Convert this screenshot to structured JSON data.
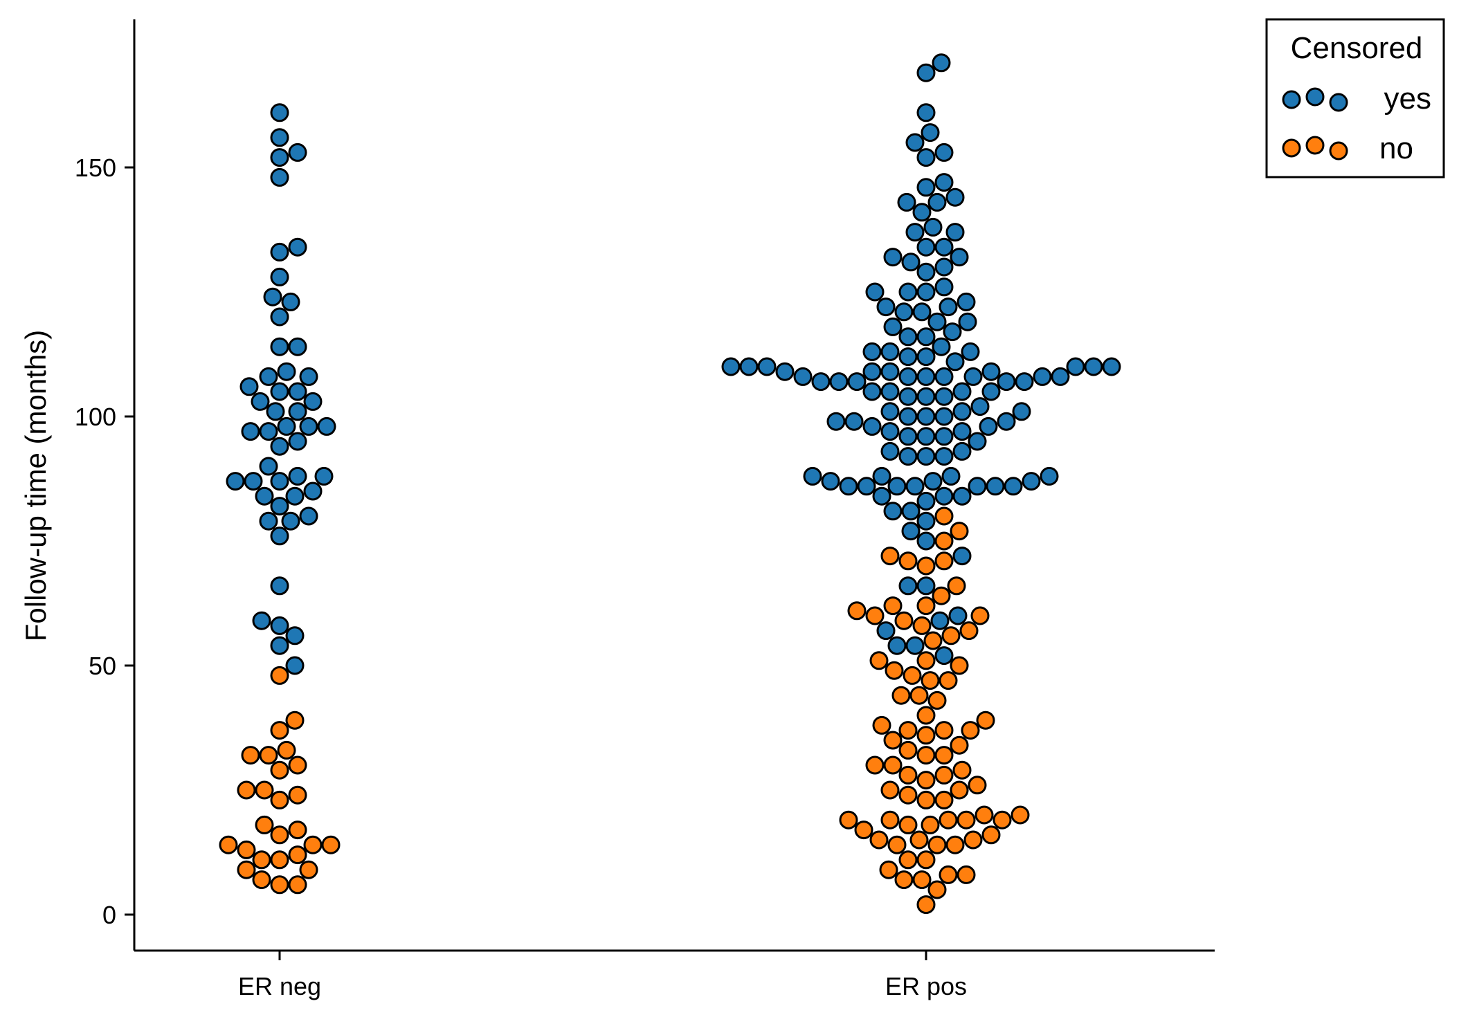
{
  "chart_data": {
    "type": "scatter",
    "subtype": "swarm",
    "title": "",
    "xlabel": "",
    "ylabel": "Follow-up time (months)",
    "categories": [
      "ER neg",
      "ER pos"
    ],
    "yticks": [
      0,
      50,
      100,
      150
    ],
    "ylim": [
      -7,
      180
    ],
    "grid": false,
    "legend": {
      "title": "Censored",
      "placement": "top-right",
      "entries": [
        {
          "label": "yes",
          "color": "#1f77b4"
        },
        {
          "label": "no",
          "color": "#ff7f0e"
        }
      ]
    },
    "colors": {
      "yes": "#1f77b4",
      "no": "#ff7f0e",
      "edge": "#000000"
    },
    "series": [
      {
        "name": "yes",
        "points": {
          "ER neg": [
            161,
            156,
            153,
            152,
            148,
            134,
            133,
            128,
            124,
            123,
            120,
            114,
            114,
            109,
            108,
            108,
            106,
            105,
            105,
            103,
            103,
            101,
            101,
            98,
            98,
            98,
            97,
            97,
            95,
            94,
            90,
            88,
            88,
            87,
            87,
            87,
            85,
            84,
            84,
            82,
            80,
            79,
            79,
            76,
            66,
            59,
            58,
            56,
            54,
            50
          ],
          "ER pos": [
            171,
            169,
            161,
            157,
            155,
            153,
            152,
            147,
            146,
            144,
            143,
            143,
            141,
            138,
            137,
            137,
            134,
            134,
            132,
            132,
            131,
            130,
            129,
            126,
            125,
            125,
            125,
            123,
            122,
            122,
            121,
            121,
            119,
            119,
            118,
            117,
            116,
            116,
            114,
            113,
            113,
            113,
            112,
            112,
            111,
            110,
            110,
            110,
            110,
            110,
            110,
            109,
            109,
            109,
            109,
            108,
            108,
            108,
            108,
            108,
            108,
            108,
            107,
            107,
            107,
            107,
            107,
            105,
            105,
            105,
            105,
            104,
            104,
            104,
            102,
            101,
            101,
            101,
            100,
            100,
            100,
            99,
            99,
            99,
            98,
            98,
            97,
            97,
            96,
            96,
            96,
            95,
            93,
            93,
            92,
            92,
            92,
            88,
            88,
            88,
            88,
            87,
            87,
            87,
            86,
            86,
            86,
            86,
            86,
            86,
            86,
            84,
            84,
            84,
            83,
            81,
            81,
            79,
            77,
            75,
            72,
            66,
            66,
            60,
            59,
            57,
            54,
            54,
            52
          ]
        }
      },
      {
        "name": "no",
        "points": {
          "ER neg": [
            48,
            39,
            37,
            33,
            32,
            32,
            30,
            29,
            25,
            25,
            24,
            23,
            18,
            17,
            16,
            14,
            14,
            14,
            13,
            12,
            11,
            11,
            9,
            9,
            7,
            6,
            6
          ],
          "ER pos": [
            80,
            77,
            75,
            72,
            71,
            71,
            70,
            66,
            64,
            62,
            62,
            61,
            60,
            60,
            59,
            58,
            57,
            56,
            55,
            51,
            51,
            50,
            49,
            48,
            47,
            47,
            44,
            44,
            43,
            40,
            39,
            38,
            37,
            37,
            37,
            36,
            35,
            34,
            33,
            32,
            32,
            30,
            30,
            29,
            28,
            28,
            27,
            26,
            25,
            25,
            24,
            23,
            23,
            20,
            20,
            19,
            19,
            19,
            19,
            19,
            18,
            18,
            17,
            16,
            15,
            15,
            15,
            14,
            14,
            14,
            11,
            11,
            9,
            8,
            8,
            7,
            7,
            5,
            2
          ]
        }
      }
    ]
  }
}
